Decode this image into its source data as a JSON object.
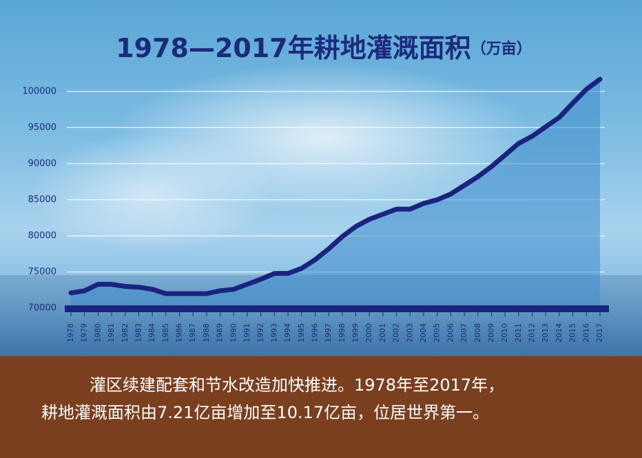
{
  "chart_data": {
    "type": "line",
    "title": "1978—2017年耕地灌溉面积",
    "unit": "（万亩）",
    "categories": [
      "1978",
      "1979",
      "1980",
      "1981",
      "1982",
      "1983",
      "1984",
      "1985",
      "1986",
      "1987",
      "1988",
      "1989",
      "1990",
      "1991",
      "1992",
      "1993",
      "1994",
      "1995",
      "1996",
      "1997",
      "1998",
      "1999",
      "2000",
      "2001",
      "2002",
      "2003",
      "2004",
      "2005",
      "2006",
      "2007",
      "2008",
      "2009",
      "2010",
      "2011",
      "2012",
      "2013",
      "2014",
      "2015",
      "2016",
      "2017"
    ],
    "values": [
      72100,
      72400,
      73300,
      73300,
      73000,
      72900,
      72600,
      72000,
      72000,
      72000,
      72000,
      72400,
      72600,
      73300,
      74000,
      74800,
      74800,
      75500,
      76700,
      78200,
      79900,
      81300,
      82300,
      83000,
      83700,
      83700,
      84500,
      85000,
      85800,
      87000,
      88200,
      89600,
      91200,
      92800,
      93800,
      95100,
      96400,
      98400,
      100300,
      101700
    ],
    "color": "#1a237e",
    "fill": "#3f8ccc",
    "ylim": [
      70000,
      102000
    ],
    "yticks": [
      70000,
      75000,
      80000,
      85000,
      90000,
      95000,
      100000
    ],
    "grid": true
  },
  "caption": [
    "灌区续建配套和节水改造加快推进。1978年至2017年，",
    "耕地灌溉面积由7.21亿亩增加至10.17亿亩，位居世界第一。"
  ]
}
